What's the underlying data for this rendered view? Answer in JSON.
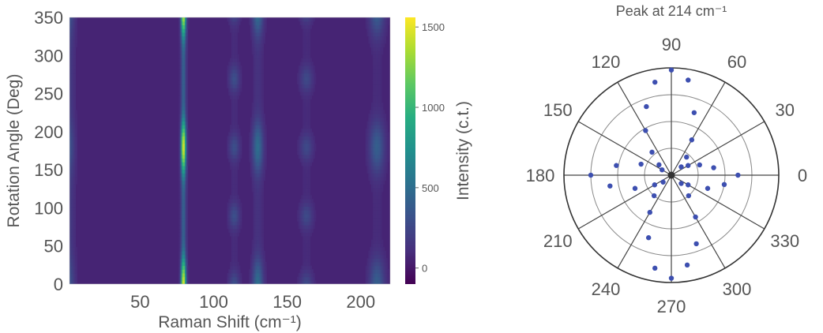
{
  "chart_data": [
    {
      "type": "heatmap",
      "xlabel": "Raman Shift (cm⁻¹)",
      "ylabel": "Rotation Angle (Deg)",
      "xlim": [
        2,
        220
      ],
      "ylim": [
        0,
        350
      ],
      "xticks": [
        50,
        100,
        150,
        200
      ],
      "yticks": [
        0,
        50,
        100,
        150,
        200,
        250,
        300,
        350
      ],
      "colorbar": {
        "label": "Intensity (c.t.)",
        "range": [
          -100,
          1560
        ],
        "ticks": [
          0,
          500,
          1000,
          1500
        ]
      },
      "peaks": [
        {
          "shift": 2,
          "width": 2.5,
          "amp": 250,
          "mode": 2,
          "base": 0.45
        },
        {
          "shift": 79.5,
          "width": 1.2,
          "amp": 1450,
          "mode": 2,
          "base": 0.25
        },
        {
          "shift": 114,
          "width": 2.5,
          "amp": 240,
          "mode": 4,
          "base": 0.15
        },
        {
          "shift": 130,
          "width": 2.5,
          "amp": 440,
          "mode": 2,
          "base": 0.15
        },
        {
          "shift": 163,
          "width": 3,
          "amp": 210,
          "mode": 4,
          "base": 0.15
        },
        {
          "shift": 211,
          "width": 3.5,
          "amp": 340,
          "mode": 2,
          "base": 0.1
        }
      ]
    },
    {
      "type": "scatter",
      "polar": true,
      "title": "Peak at 214 cm⁻¹",
      "angle_ticks": [
        0,
        30,
        60,
        90,
        120,
        150,
        180,
        210,
        240,
        270,
        300,
        330
      ],
      "radial_max": 1,
      "points": [
        {
          "theta": 0,
          "r": 0.62
        },
        {
          "theta": 10,
          "r": 0.4
        },
        {
          "theta": 20,
          "r": 0.28
        },
        {
          "theta": 30,
          "r": 0.18
        },
        {
          "theta": 40,
          "r": 0.12
        },
        {
          "theta": 50,
          "r": 0.22
        },
        {
          "theta": 60,
          "r": 0.38
        },
        {
          "theta": 70,
          "r": 0.62
        },
        {
          "theta": 80,
          "r": 0.9
        },
        {
          "theta": 90,
          "r": 0.98
        },
        {
          "theta": 100,
          "r": 0.88
        },
        {
          "theta": 110,
          "r": 0.68
        },
        {
          "theta": 120,
          "r": 0.48
        },
        {
          "theta": 130,
          "r": 0.28
        },
        {
          "theta": 140,
          "r": 0.15
        },
        {
          "theta": 150,
          "r": 0.1
        },
        {
          "theta": 160,
          "r": 0.3
        },
        {
          "theta": 170,
          "r": 0.52
        },
        {
          "theta": 180,
          "r": 0.75
        },
        {
          "theta": 190,
          "r": 0.58
        },
        {
          "theta": 200,
          "r": 0.36
        },
        {
          "theta": 210,
          "r": 0.18
        },
        {
          "theta": 220,
          "r": 0.1
        },
        {
          "theta": 230,
          "r": 0.25
        },
        {
          "theta": 240,
          "r": 0.4
        },
        {
          "theta": 250,
          "r": 0.62
        },
        {
          "theta": 260,
          "r": 0.88
        },
        {
          "theta": 270,
          "r": 0.96
        },
        {
          "theta": 280,
          "r": 0.85
        },
        {
          "theta": 290,
          "r": 0.68
        },
        {
          "theta": 300,
          "r": 0.45
        },
        {
          "theta": 310,
          "r": 0.25
        },
        {
          "theta": 320,
          "r": 0.12
        },
        {
          "theta": 330,
          "r": 0.18
        },
        {
          "theta": 340,
          "r": 0.36
        },
        {
          "theta": 350,
          "r": 0.5
        }
      ]
    }
  ],
  "colors": {
    "polar_points": "#3d4fb0",
    "polar_grid": "#8a8a8a",
    "polar_spokes": "#444444",
    "viridis_stops": [
      "#440154",
      "#472f7d",
      "#3b518b",
      "#2c718e",
      "#21908d",
      "#27ad81",
      "#5cc863",
      "#aadc32",
      "#fde725"
    ]
  }
}
